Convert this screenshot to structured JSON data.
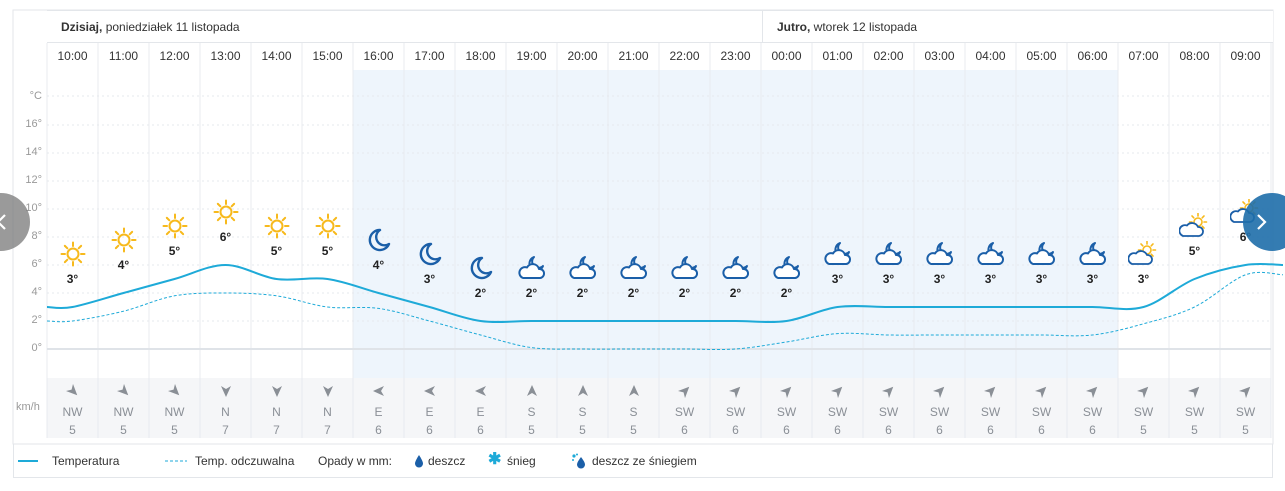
{
  "days": [
    {
      "bold": "Dzisiaj,",
      "rest": " poniedziałek 11 listopada"
    },
    {
      "bold": "Jutro,",
      "rest": " wtorek 12 listopada"
    }
  ],
  "y_axis": {
    "unit": "°C",
    "ticks": [
      "16°",
      "14°",
      "12°",
      "10°",
      "8°",
      "6°",
      "4°",
      "2°",
      "0°"
    ],
    "wind_unit": "km/h"
  },
  "colors": {
    "temperature_line": "#1eaad8",
    "feels_like_line": "#1eaad8",
    "night_band": "#eef5fc",
    "sun": "#f7b91b",
    "moon_cloud": "#1b5fa8"
  },
  "hours": [
    {
      "time": "10:00",
      "icon": "sun-icon",
      "temp": 3,
      "temp_label": "3°",
      "feels": 2,
      "wind_dir": "NW",
      "wind_speed": "5"
    },
    {
      "time": "11:00",
      "icon": "sun-icon",
      "temp": 4,
      "temp_label": "4°",
      "feels": 2.7,
      "wind_dir": "NW",
      "wind_speed": "5"
    },
    {
      "time": "12:00",
      "icon": "sun-icon",
      "temp": 5,
      "temp_label": "5°",
      "feels": 3.8,
      "wind_dir": "NW",
      "wind_speed": "5"
    },
    {
      "time": "13:00",
      "icon": "sun-icon",
      "temp": 6,
      "temp_label": "6°",
      "feels": 4,
      "wind_dir": "N",
      "wind_speed": "7"
    },
    {
      "time": "14:00",
      "icon": "sun-icon",
      "temp": 5,
      "temp_label": "5°",
      "feels": 3.8,
      "wind_dir": "N",
      "wind_speed": "7"
    },
    {
      "time": "15:00",
      "icon": "sun-icon",
      "temp": 5,
      "temp_label": "5°",
      "feels": 3,
      "wind_dir": "N",
      "wind_speed": "7"
    },
    {
      "time": "16:00",
      "icon": "moon-icon",
      "temp": 4,
      "temp_label": "4°",
      "feels": 2.9,
      "wind_dir": "E",
      "wind_speed": "6"
    },
    {
      "time": "17:00",
      "icon": "moon-icon",
      "temp": 3,
      "temp_label": "3°",
      "feels": 2,
      "wind_dir": "E",
      "wind_speed": "6"
    },
    {
      "time": "18:00",
      "icon": "moon-icon",
      "temp": 2,
      "temp_label": "2°",
      "feels": 1,
      "wind_dir": "E",
      "wind_speed": "6"
    },
    {
      "time": "19:00",
      "icon": "moon-cloud-icon",
      "temp": 2,
      "temp_label": "2°",
      "feels": 0.1,
      "wind_dir": "S",
      "wind_speed": "5"
    },
    {
      "time": "20:00",
      "icon": "moon-cloud-icon",
      "temp": 2,
      "temp_label": "2°",
      "feels": 0,
      "wind_dir": "S",
      "wind_speed": "5"
    },
    {
      "time": "21:00",
      "icon": "moon-cloud-icon",
      "temp": 2,
      "temp_label": "2°",
      "feels": 0,
      "wind_dir": "S",
      "wind_speed": "5"
    },
    {
      "time": "22:00",
      "icon": "moon-cloud-icon",
      "temp": 2,
      "temp_label": "2°",
      "feels": 0,
      "wind_dir": "SW",
      "wind_speed": "6"
    },
    {
      "time": "23:00",
      "icon": "moon-cloud-icon",
      "temp": 2,
      "temp_label": "2°",
      "feels": 0,
      "wind_dir": "SW",
      "wind_speed": "6"
    },
    {
      "time": "00:00",
      "icon": "moon-cloud-icon",
      "temp": 2,
      "temp_label": "2°",
      "feels": 0.5,
      "wind_dir": "SW",
      "wind_speed": "6"
    },
    {
      "time": "01:00",
      "icon": "moon-cloud-icon",
      "temp": 3,
      "temp_label": "3°",
      "feels": 1.1,
      "wind_dir": "SW",
      "wind_speed": "6"
    },
    {
      "time": "02:00",
      "icon": "moon-cloud-icon",
      "temp": 3,
      "temp_label": "3°",
      "feels": 1,
      "wind_dir": "SW",
      "wind_speed": "6"
    },
    {
      "time": "03:00",
      "icon": "moon-cloud-icon",
      "temp": 3,
      "temp_label": "3°",
      "feels": 1,
      "wind_dir": "SW",
      "wind_speed": "6"
    },
    {
      "time": "04:00",
      "icon": "moon-cloud-icon",
      "temp": 3,
      "temp_label": "3°",
      "feels": 1,
      "wind_dir": "SW",
      "wind_speed": "6"
    },
    {
      "time": "05:00",
      "icon": "moon-cloud-icon",
      "temp": 3,
      "temp_label": "3°",
      "feels": 1,
      "wind_dir": "SW",
      "wind_speed": "6"
    },
    {
      "time": "06:00",
      "icon": "moon-cloud-icon",
      "temp": 3,
      "temp_label": "3°",
      "feels": 1,
      "wind_dir": "SW",
      "wind_speed": "6"
    },
    {
      "time": "07:00",
      "icon": "cloud-sun-icon",
      "temp": 3,
      "temp_label": "3°",
      "feels": 1.8,
      "wind_dir": "SW",
      "wind_speed": "5"
    },
    {
      "time": "08:00",
      "icon": "cloud-sun-icon",
      "temp": 5,
      "temp_label": "5°",
      "feels": 3,
      "wind_dir": "SW",
      "wind_speed": "5"
    },
    {
      "time": "09:00",
      "icon": "cloud-sun-icon",
      "temp": 6,
      "temp_label": "6°",
      "feels": 5.3,
      "wind_dir": "SW",
      "wind_speed": "5"
    }
  ],
  "legend": {
    "temperature": "Temperatura",
    "feels_like": "Temp. odczuwalna",
    "precip_title": "Opady w mm:",
    "rain": "deszcz",
    "snow": "śnieg",
    "rain_snow": "deszcz ze śniegiem"
  }
}
